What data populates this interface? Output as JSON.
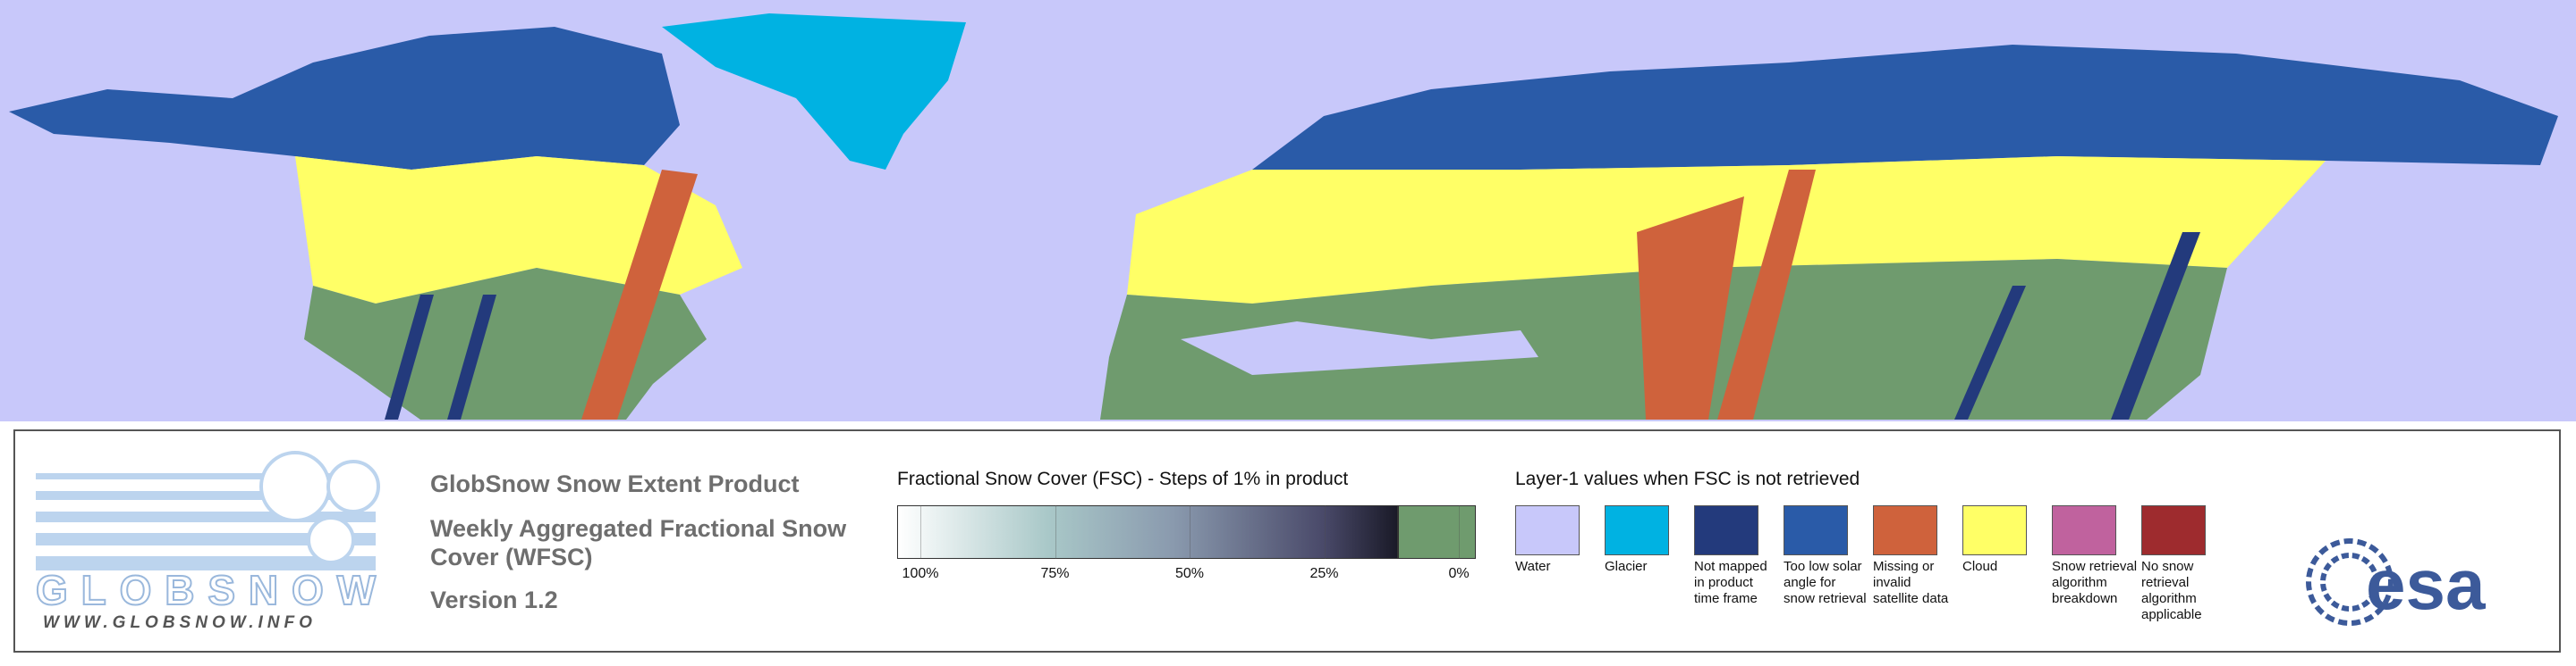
{
  "logo": {
    "name": "GLOBSNOW",
    "url": "WWW.GLOBSNOW.INFO"
  },
  "header": {
    "product": "GlobSnow Snow Extent Product",
    "subtitle": "Weekly Aggregated Fractional Snow Cover (WFSC)",
    "version": "Version 1.2"
  },
  "fsc_legend": {
    "title": "Fractional Snow Cover (FSC) - Steps of 1% in product",
    "range": [
      100,
      0
    ],
    "ticks": [
      {
        "value": 100,
        "label": "100%"
      },
      {
        "value": 75,
        "label": "75%"
      },
      {
        "value": 50,
        "label": "50%"
      },
      {
        "value": 25,
        "label": "25%"
      },
      {
        "value": 0,
        "label": "0%"
      }
    ]
  },
  "layer_legend": {
    "title": "Layer-1 values when FSC is not retrieved",
    "items": [
      {
        "label": "Water",
        "color": "#c8c8fa"
      },
      {
        "label": "Glacier",
        "color": "#00b2e2"
      },
      {
        "label": "Not mapped in product time frame",
        "color": "#233a7c"
      },
      {
        "label": "Too low solar angle for snow retrieval",
        "color": "#2a5ba8"
      },
      {
        "label": "Missing or invalid satellite data",
        "color": "#cf623c"
      },
      {
        "label": "Cloud",
        "color": "#ffff66"
      },
      {
        "label": "Snow retrieval algorithm breakdown",
        "color": "#c0629e"
      },
      {
        "label": "No snow retrieval algorithm applicable",
        "color": "#9e2b2e"
      }
    ]
  },
  "agency": "esa"
}
